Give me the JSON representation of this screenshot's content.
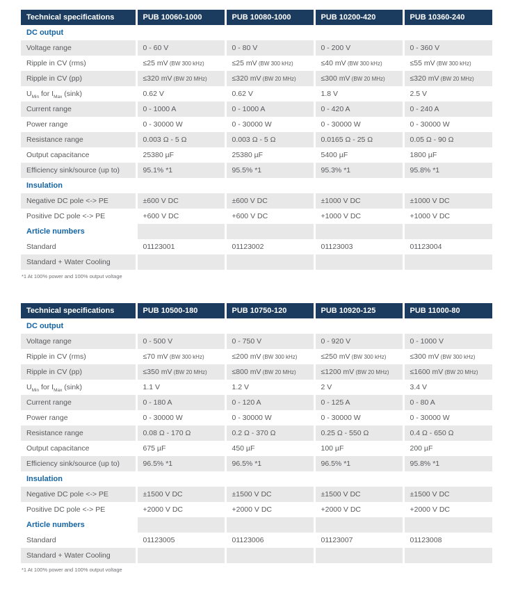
{
  "colors": {
    "header_bg": "#1B3C5F",
    "header_text": "#FFFFFF",
    "section_text": "#1464A4",
    "row_alt_bg": "#E8E8E9",
    "body_text": "#595A5C",
    "footnote_text": "#707074",
    "page_bg": "#FFFFFF"
  },
  "tables": [
    {
      "header": [
        "Technical specifications",
        "PUB 10060-1000",
        "PUB 10080-1000",
        "PUB 10200-420",
        "PUB 10360-240"
      ],
      "rows": [
        {
          "type": "section",
          "label": "DC output"
        },
        {
          "type": "data",
          "label": "Voltage range",
          "values": [
            "0 - 60 V",
            "0 - 80 V",
            "0 - 200 V",
            "0 - 360 V"
          ]
        },
        {
          "type": "data",
          "label": "Ripple in CV (rms)",
          "values": [
            "≤25 mV",
            "≤25 mV",
            "≤40 mV",
            "≤55 mV"
          ],
          "value_note": "(BW 300 kHz)"
        },
        {
          "type": "data",
          "label": "Ripple in CV (pp)",
          "values": [
            "≤320 mV",
            "≤320 mV",
            "≤300 mV",
            "≤320 mV"
          ],
          "value_note": "(BW 20 MHz)"
        },
        {
          "type": "data",
          "label": "U_Min for I_Max (sink)",
          "label_parts": [
            {
              "t": "U"
            },
            {
              "sub": "Min"
            },
            {
              "t": " for I"
            },
            {
              "sub": "Max"
            },
            {
              "t": " (sink)"
            }
          ],
          "values": [
            "0.62 V",
            "0.62 V",
            "1.8 V",
            "2.5 V"
          ]
        },
        {
          "type": "data",
          "label": "Current range",
          "values": [
            "0 - 1000 A",
            "0 - 1000 A",
            "0 - 420 A",
            "0 - 240 A"
          ]
        },
        {
          "type": "data",
          "label": "Power range",
          "values": [
            "0 - 30000 W",
            "0 - 30000 W",
            "0 - 30000 W",
            "0 - 30000 W"
          ]
        },
        {
          "type": "data",
          "label": "Resistance range",
          "values": [
            "0.003 Ω - 5 Ω",
            "0.003 Ω - 5 Ω",
            "0.0165 Ω - 25 Ω",
            "0.05 Ω - 90 Ω"
          ]
        },
        {
          "type": "data",
          "label": "Output capacitance",
          "values": [
            "25380 µF",
            "25380 µF",
            "5400 µF",
            "1800 µF"
          ]
        },
        {
          "type": "data",
          "label": "Efficiency sink/source (up to)",
          "values": [
            "95.1% *1",
            "95.5% *1",
            "95.3% *1",
            "95.8% *1"
          ]
        },
        {
          "type": "section",
          "label": "Insulation"
        },
        {
          "type": "data",
          "label": "Negative DC pole <-> PE",
          "values": [
            "±600 V DC",
            "±600 V DC",
            "±1000 V DC",
            "±1000 V DC"
          ]
        },
        {
          "type": "data",
          "label": "Positive DC pole <-> PE",
          "values": [
            "+600 V DC",
            "+600 V DC",
            "+1000 V DC",
            "+1000 V DC"
          ]
        },
        {
          "type": "section",
          "label": "Article numbers"
        },
        {
          "type": "data",
          "label": "Standard",
          "values": [
            "01123001",
            "01123002",
            "01123003",
            "01123004"
          ]
        },
        {
          "type": "data",
          "label": "Standard + Water Cooling",
          "values": [
            "",
            "",
            "",
            ""
          ]
        }
      ],
      "footnote": "*1 At 100% power and 100% output voltage"
    },
    {
      "header": [
        "Technical specifications",
        "PUB 10500-180",
        "PUB 10750-120",
        "PUB 10920-125",
        "PUB 11000-80"
      ],
      "rows": [
        {
          "type": "section",
          "label": "DC output"
        },
        {
          "type": "data",
          "label": "Voltage range",
          "values": [
            "0 - 500 V",
            "0 - 750 V",
            "0 - 920 V",
            "0 - 1000 V"
          ]
        },
        {
          "type": "data",
          "label": "Ripple in CV (rms)",
          "values": [
            "≤70 mV",
            "≤200 mV",
            "≤250 mV",
            "≤300 mV"
          ],
          "value_note": "(BW 300 kHz)"
        },
        {
          "type": "data",
          "label": "Ripple in CV (pp)",
          "values": [
            "≤350 mV",
            "≤800 mV",
            "≤1200 mV",
            "≤1600 mV"
          ],
          "value_note": "(BW 20 MHz)"
        },
        {
          "type": "data",
          "label": "U_Min for I_Max (sink)",
          "label_parts": [
            {
              "t": "U"
            },
            {
              "sub": "Min"
            },
            {
              "t": " for I"
            },
            {
              "sub": "Max"
            },
            {
              "t": " (sink)"
            }
          ],
          "values": [
            "1.1 V",
            "1.2 V",
            "2 V",
            "3.4 V"
          ]
        },
        {
          "type": "data",
          "label": "Current range",
          "values": [
            "0 - 180 A",
            "0 - 120 A",
            "0 - 125 A",
            "0 - 80 A"
          ]
        },
        {
          "type": "data",
          "label": "Power range",
          "values": [
            "0 - 30000 W",
            "0 - 30000 W",
            "0 - 30000 W",
            "0 - 30000 W"
          ]
        },
        {
          "type": "data",
          "label": "Resistance range",
          "values": [
            "0.08 Ω - 170 Ω",
            "0.2 Ω - 370 Ω",
            "0.25 Ω - 550 Ω",
            "0.4 Ω - 650 Ω"
          ]
        },
        {
          "type": "data",
          "label": "Output capacitance",
          "values": [
            "675 µF",
            "450 µF",
            "100 µF",
            "200 µF"
          ]
        },
        {
          "type": "data",
          "label": "Efficiency sink/source (up to)",
          "values": [
            "96.5% *1",
            "96.5% *1",
            "96.5% *1",
            "95.8% *1"
          ]
        },
        {
          "type": "section",
          "label": "Insulation"
        },
        {
          "type": "data",
          "label": "Negative DC pole <-> PE",
          "values": [
            "±1500 V DC",
            "±1500 V DC",
            "±1500 V DC",
            "±1500 V DC"
          ]
        },
        {
          "type": "data",
          "label": "Positive DC pole <-> PE",
          "values": [
            "+2000 V DC",
            "+2000 V DC",
            "+2000 V DC",
            "+2000 V DC"
          ]
        },
        {
          "type": "section",
          "label": "Article numbers"
        },
        {
          "type": "data",
          "label": "Standard",
          "values": [
            "01123005",
            "01123006",
            "01123007",
            "01123008"
          ]
        },
        {
          "type": "data",
          "label": "Standard + Water Cooling",
          "values": [
            "",
            "",
            "",
            ""
          ]
        }
      ],
      "footnote": "*1 At 100% power and 100% output voltage"
    }
  ]
}
